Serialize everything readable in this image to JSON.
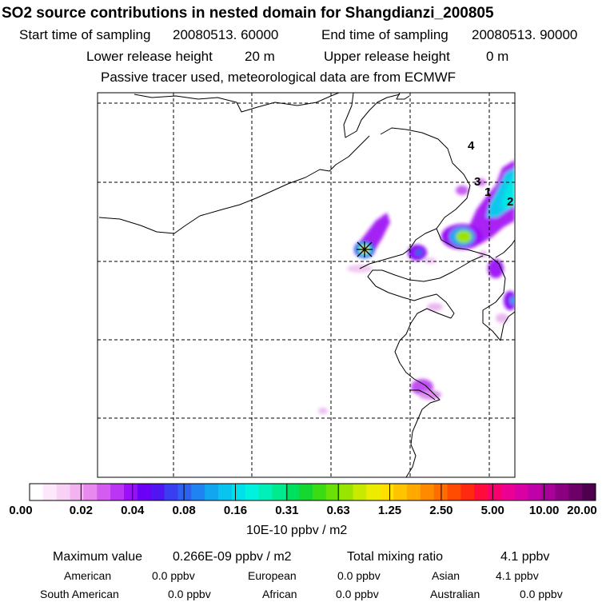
{
  "header": {
    "title": "SO2 source contributions in nested domain for Shangdianzi_200805",
    "start_label": "Start time of sampling",
    "start_value": "20080513. 60000",
    "end_label": "End time of sampling",
    "end_value": "20080513. 90000",
    "lower_label": "Lower release height",
    "lower_value": "20 m",
    "upper_label": "Upper release height",
    "upper_value": "0 m",
    "tracer_note": "Passive tracer used, meteorological data are from ECMWF"
  },
  "map": {
    "site_markers": [
      "4",
      "3",
      "1",
      "2"
    ],
    "receptor_symbol": "star-cross"
  },
  "colorbar": {
    "tick_labels": [
      "0.00",
      "0.02",
      "0.04",
      "0.08",
      "0.16",
      "0.31",
      "0.63",
      "1.25",
      "2.50",
      "5.00",
      "10.00",
      "20.00"
    ],
    "unit": "10E-10 ppbv / m2",
    "colors": [
      "#ffffff",
      "#fde8fb",
      "#f9d0f6",
      "#f2b4f0",
      "#e889ee",
      "#d45cf0",
      "#bb35f4",
      "#9a10f8",
      "#6a00f5",
      "#4f16f2",
      "#3b3ef0",
      "#2d62f0",
      "#1f84f2",
      "#12a6f0",
      "#08c4ee",
      "#00e0ea",
      "#00f2dc",
      "#00f0b8",
      "#00ea8e",
      "#00e060",
      "#14d830",
      "#3cdc14",
      "#6ae006",
      "#99e400",
      "#c8ea00",
      "#ecec00",
      "#ffe000",
      "#ffc400",
      "#ffa800",
      "#ff8a00",
      "#ff6c00",
      "#ff4c00",
      "#ff2a10",
      "#ff0c3c",
      "#f8006c",
      "#ec0094",
      "#d800a4",
      "#c000a8",
      "#a80098",
      "#8a0080",
      "#6c0066",
      "#4e004e"
    ]
  },
  "footer": {
    "max_label": "Maximum value",
    "max_value": "0.266E-09 ppbv / m2",
    "total_label": "Total mixing ratio",
    "total_value": "4.1 ppbv",
    "regions": [
      {
        "name": "American",
        "value": "0.0 ppbv"
      },
      {
        "name": "European",
        "value": "0.0 ppbv"
      },
      {
        "name": "Asian",
        "value": "4.1 ppbv"
      },
      {
        "name": "South American",
        "value": "0.0 ppbv"
      },
      {
        "name": "African",
        "value": "0.0 ppbv"
      },
      {
        "name": "Australian",
        "value": "0.0 ppbv"
      }
    ]
  }
}
